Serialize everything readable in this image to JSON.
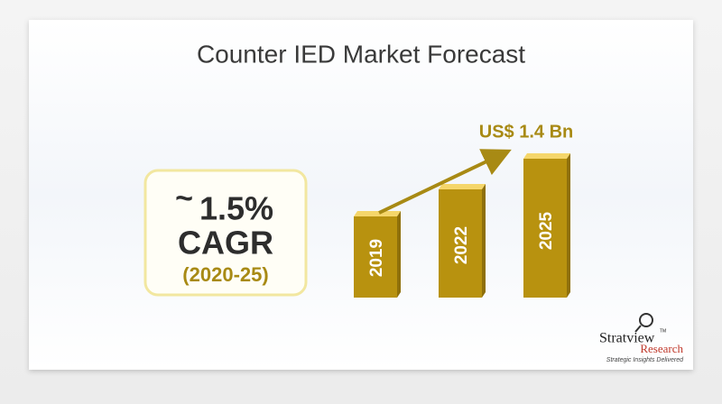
{
  "header": {
    "title": "Counter IED Market Forecast"
  },
  "cagr": {
    "approx": "~",
    "rate": "1.5%",
    "label": "CAGR",
    "period": "(2020-25)"
  },
  "forecast": {
    "value_label": "US$ 1.4 Bn",
    "years": [
      "2019",
      "2022",
      "2025"
    ]
  },
  "logo": {
    "name": "Stratview",
    "trademark": "TM",
    "sub": "Research",
    "tagline": "Strategic Insights Delivered"
  }
}
